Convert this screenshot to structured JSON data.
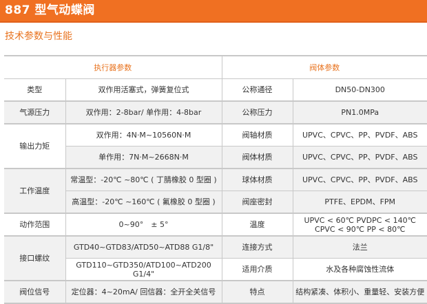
{
  "header": {
    "title": "887 型气动蝶阀",
    "accent": "#f07022"
  },
  "section_title": "技术参数与性能",
  "table": {
    "headers": [
      "执行器参数",
      "阀体参数"
    ],
    "rows": [
      {
        "label": "类型",
        "value": "双作用活塞式，弹簧复位式",
        "param": "公称通径",
        "param_value": "DN50-DN300"
      },
      {
        "label": "气源压力",
        "value": "双作用：2-8bar/ 单作用：4-8bar",
        "param": "公称压力",
        "param_value": "PN1.0MPa"
      },
      {
        "label": "输出力矩",
        "value": "双作用：4N·M~10560N·M",
        "param": "阀轴材质",
        "param_value": "UPVC、CPVC、PP、PVDF、ABS"
      },
      {
        "value": "单作用：7N·M~2668N·M",
        "param": "阀体材质",
        "param_value": "UPVC、CPVC、PP、PVDF、ABS"
      },
      {
        "label": "工作温度",
        "value": "常温型：-20℃ ~80℃ ( 丁腈橡胶 0 型圈 )",
        "param": "球体材质",
        "param_value": "UPVC、CPVC、PP、PVDF、ABS"
      },
      {
        "value": "高温型：-20℃ ~160℃ ( 氟橡胶 0 型圈 )",
        "param": "阀座密封",
        "param_value": "PTFE、EPDM、FPM"
      },
      {
        "label": "动作范围",
        "value": "0~90°　± 5°",
        "param": "温度",
        "param_value": "UPVC < 60℃   PVDPC < 140℃",
        "param_value_2": "CPVC < 90℃   PP < 80℃"
      },
      {
        "label": "接口螺纹",
        "value": "GTD40~GTD83/ATD50~ATD88  G1/8\"",
        "param": "连接方式",
        "param_value": "法兰"
      },
      {
        "value": "GTD110~GTD350/ATD100~ATD200  G1/4\"",
        "param": "适用介质",
        "param_value": "水及各种腐蚀性流体"
      },
      {
        "label": "阀位信号",
        "value": "定位器：4~20mA/ 回信器：全开全关信号",
        "param": "特点",
        "param_value": "结构紧凑、体积小、重量轻、安装方便"
      }
    ]
  }
}
